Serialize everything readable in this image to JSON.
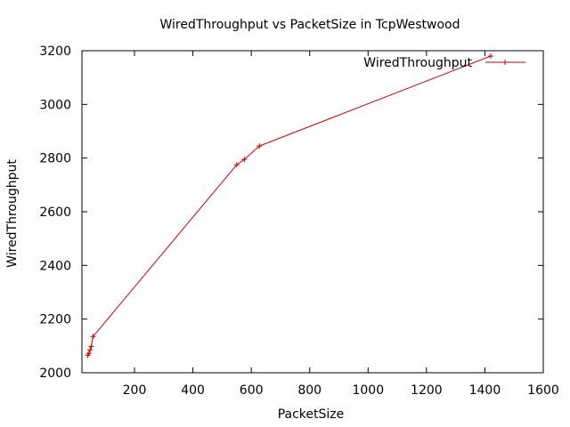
{
  "chart_data": {
    "type": "line",
    "title": "WiredThroughput vs PacketSize in TcpWestwood",
    "xlabel": "PacketSize",
    "ylabel": "WiredThroughput",
    "xlim": [
      20,
      1600
    ],
    "ylim": [
      2000,
      3200
    ],
    "x_ticks": [
      200,
      400,
      600,
      800,
      1000,
      1200,
      1400,
      1600
    ],
    "y_ticks": [
      2000,
      2200,
      2400,
      2600,
      2800,
      3000,
      3200
    ],
    "grid": false,
    "legend": {
      "position": "top-right",
      "style": "line-with-plus-marker"
    },
    "series": [
      {
        "name": "WiredThroughput",
        "color": "#cc0000",
        "marker": "plus",
        "points": [
          {
            "x": 40,
            "y": 2065
          },
          {
            "x": 44,
            "y": 2072
          },
          {
            "x": 48,
            "y": 2085
          },
          {
            "x": 52,
            "y": 2098
          },
          {
            "x": 58,
            "y": 2135
          },
          {
            "x": 550,
            "y": 2775
          },
          {
            "x": 576,
            "y": 2795
          },
          {
            "x": 628,
            "y": 2845
          },
          {
            "x": 1420,
            "y": 3180
          }
        ]
      }
    ]
  }
}
